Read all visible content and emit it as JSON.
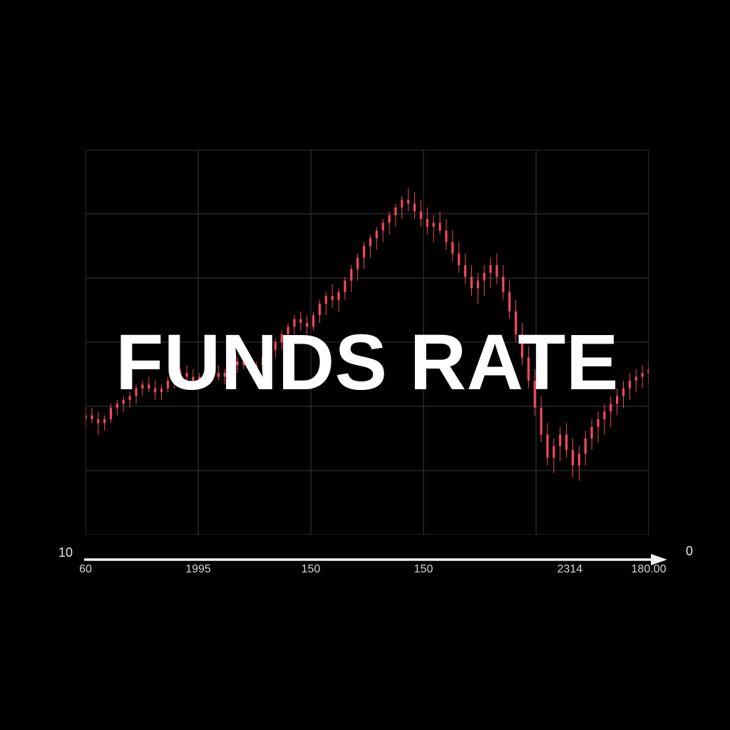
{
  "chart": {
    "type": "candlestick",
    "title": "FUNDS RATE",
    "title_color": "#ffffff",
    "title_fontsize": 110,
    "title_fontweight": 800,
    "background_color": "#000000",
    "grid_color": "#3a3a3a",
    "line_color": "#f24a5a",
    "axis_arrow_color": "#f2f2f2",
    "tick_text_color": "#d7d7d7",
    "edge_label_color": "#e7e7e7",
    "plot": {
      "xlim": [
        0,
        100
      ],
      "ylim": [
        0,
        100
      ],
      "x_gridlines_at": [
        0,
        20,
        40,
        60,
        80,
        100
      ],
      "y_gridlines_at": [
        0,
        16.67,
        33.33,
        50,
        66.67,
        83.33,
        100
      ]
    },
    "left_axis_label": "10",
    "right_axis_label": "0",
    "x_ticks": [
      {
        "pos": 0,
        "label": "60"
      },
      {
        "pos": 20,
        "label": "1995"
      },
      {
        "pos": 40,
        "label": "150"
      },
      {
        "pos": 60,
        "label": "150"
      },
      {
        "pos": 86,
        "label": "2314"
      },
      {
        "pos": 100,
        "label": "180.00"
      }
    ],
    "series": [
      {
        "x": 0,
        "o": 30,
        "h": 33,
        "l": 28,
        "c": 31
      },
      {
        "x": 1,
        "o": 31,
        "h": 33,
        "l": 29,
        "c": 30
      },
      {
        "x": 2,
        "o": 30,
        "h": 32,
        "l": 26,
        "c": 29
      },
      {
        "x": 3,
        "o": 29,
        "h": 31,
        "l": 27,
        "c": 30
      },
      {
        "x": 4,
        "o": 30,
        "h": 34,
        "l": 29,
        "c": 33
      },
      {
        "x": 5,
        "o": 33,
        "h": 35,
        "l": 31,
        "c": 34
      },
      {
        "x": 6,
        "o": 34,
        "h": 36,
        "l": 32,
        "c": 35
      },
      {
        "x": 7,
        "o": 35,
        "h": 37,
        "l": 33,
        "c": 36
      },
      {
        "x": 8,
        "o": 36,
        "h": 39,
        "l": 34,
        "c": 38
      },
      {
        "x": 9,
        "o": 38,
        "h": 40,
        "l": 36,
        "c": 39
      },
      {
        "x": 10,
        "o": 39,
        "h": 41,
        "l": 37,
        "c": 38
      },
      {
        "x": 11,
        "o": 38,
        "h": 40,
        "l": 35,
        "c": 37
      },
      {
        "x": 12,
        "o": 37,
        "h": 39,
        "l": 35,
        "c": 38
      },
      {
        "x": 13,
        "o": 38,
        "h": 41,
        "l": 37,
        "c": 40
      },
      {
        "x": 14,
        "o": 40,
        "h": 42,
        "l": 38,
        "c": 41
      },
      {
        "x": 15,
        "o": 41,
        "h": 43,
        "l": 39,
        "c": 42
      },
      {
        "x": 16,
        "o": 42,
        "h": 44,
        "l": 40,
        "c": 41
      },
      {
        "x": 17,
        "o": 41,
        "h": 43,
        "l": 39,
        "c": 40
      },
      {
        "x": 18,
        "o": 40,
        "h": 42,
        "l": 38,
        "c": 41
      },
      {
        "x": 19,
        "o": 41,
        "h": 44,
        "l": 40,
        "c": 43
      },
      {
        "x": 20,
        "o": 43,
        "h": 45,
        "l": 41,
        "c": 42
      },
      {
        "x": 21,
        "o": 42,
        "h": 44,
        "l": 40,
        "c": 41
      },
      {
        "x": 22,
        "o": 41,
        "h": 43,
        "l": 39,
        "c": 42
      },
      {
        "x": 23,
        "o": 42,
        "h": 45,
        "l": 41,
        "c": 44
      },
      {
        "x": 24,
        "o": 44,
        "h": 46,
        "l": 42,
        "c": 45
      },
      {
        "x": 25,
        "o": 45,
        "h": 47,
        "l": 43,
        "c": 44
      },
      {
        "x": 26,
        "o": 44,
        "h": 46,
        "l": 42,
        "c": 43
      },
      {
        "x": 27,
        "o": 43,
        "h": 45,
        "l": 41,
        "c": 44
      },
      {
        "x": 28,
        "o": 44,
        "h": 47,
        "l": 43,
        "c": 46
      },
      {
        "x": 29,
        "o": 46,
        "h": 49,
        "l": 45,
        "c": 48
      },
      {
        "x": 30,
        "o": 48,
        "h": 51,
        "l": 46,
        "c": 50
      },
      {
        "x": 31,
        "o": 50,
        "h": 53,
        "l": 48,
        "c": 52
      },
      {
        "x": 32,
        "o": 52,
        "h": 55,
        "l": 50,
        "c": 54
      },
      {
        "x": 33,
        "o": 54,
        "h": 57,
        "l": 52,
        "c": 56
      },
      {
        "x": 34,
        "o": 56,
        "h": 58,
        "l": 53,
        "c": 55
      },
      {
        "x": 35,
        "o": 55,
        "h": 57,
        "l": 52,
        "c": 54
      },
      {
        "x": 36,
        "o": 54,
        "h": 58,
        "l": 53,
        "c": 57
      },
      {
        "x": 37,
        "o": 57,
        "h": 61,
        "l": 55,
        "c": 60
      },
      {
        "x": 38,
        "o": 60,
        "h": 63,
        "l": 57,
        "c": 62
      },
      {
        "x": 39,
        "o": 62,
        "h": 65,
        "l": 59,
        "c": 61
      },
      {
        "x": 40,
        "o": 61,
        "h": 64,
        "l": 58,
        "c": 63
      },
      {
        "x": 41,
        "o": 63,
        "h": 67,
        "l": 61,
        "c": 66
      },
      {
        "x": 42,
        "o": 66,
        "h": 70,
        "l": 63,
        "c": 69
      },
      {
        "x": 43,
        "o": 69,
        "h": 73,
        "l": 66,
        "c": 72
      },
      {
        "x": 44,
        "o": 72,
        "h": 76,
        "l": 69,
        "c": 75
      },
      {
        "x": 45,
        "o": 75,
        "h": 78,
        "l": 72,
        "c": 77
      },
      {
        "x": 46,
        "o": 77,
        "h": 80,
        "l": 74,
        "c": 79
      },
      {
        "x": 47,
        "o": 79,
        "h": 82,
        "l": 76,
        "c": 81
      },
      {
        "x": 48,
        "o": 81,
        "h": 84,
        "l": 78,
        "c": 83
      },
      {
        "x": 49,
        "o": 83,
        "h": 86,
        "l": 80,
        "c": 85
      },
      {
        "x": 50,
        "o": 85,
        "h": 88,
        "l": 82,
        "c": 87
      },
      {
        "x": 51,
        "o": 87,
        "h": 90,
        "l": 84,
        "c": 86
      },
      {
        "x": 52,
        "o": 86,
        "h": 89,
        "l": 82,
        "c": 84
      },
      {
        "x": 53,
        "o": 84,
        "h": 87,
        "l": 80,
        "c": 82
      },
      {
        "x": 54,
        "o": 82,
        "h": 85,
        "l": 78,
        "c": 80
      },
      {
        "x": 55,
        "o": 80,
        "h": 83,
        "l": 76,
        "c": 81
      },
      {
        "x": 56,
        "o": 81,
        "h": 84,
        "l": 78,
        "c": 79
      },
      {
        "x": 57,
        "o": 79,
        "h": 82,
        "l": 74,
        "c": 76
      },
      {
        "x": 58,
        "o": 76,
        "h": 79,
        "l": 71,
        "c": 73
      },
      {
        "x": 59,
        "o": 73,
        "h": 76,
        "l": 68,
        "c": 70
      },
      {
        "x": 60,
        "o": 70,
        "h": 73,
        "l": 65,
        "c": 67
      },
      {
        "x": 61,
        "o": 67,
        "h": 70,
        "l": 62,
        "c": 64
      },
      {
        "x": 62,
        "o": 64,
        "h": 68,
        "l": 60,
        "c": 66
      },
      {
        "x": 63,
        "o": 66,
        "h": 70,
        "l": 62,
        "c": 68
      },
      {
        "x": 64,
        "o": 68,
        "h": 72,
        "l": 64,
        "c": 70
      },
      {
        "x": 65,
        "o": 70,
        "h": 73,
        "l": 65,
        "c": 67
      },
      {
        "x": 66,
        "o": 67,
        "h": 70,
        "l": 61,
        "c": 63
      },
      {
        "x": 67,
        "o": 63,
        "h": 66,
        "l": 56,
        "c": 58
      },
      {
        "x": 68,
        "o": 58,
        "h": 61,
        "l": 50,
        "c": 52
      },
      {
        "x": 69,
        "o": 52,
        "h": 55,
        "l": 44,
        "c": 46
      },
      {
        "x": 70,
        "o": 46,
        "h": 49,
        "l": 38,
        "c": 40
      },
      {
        "x": 71,
        "o": 40,
        "h": 43,
        "l": 31,
        "c": 33
      },
      {
        "x": 72,
        "o": 33,
        "h": 36,
        "l": 24,
        "c": 26
      },
      {
        "x": 73,
        "o": 26,
        "h": 29,
        "l": 18,
        "c": 20
      },
      {
        "x": 74,
        "o": 20,
        "h": 25,
        "l": 16,
        "c": 23
      },
      {
        "x": 75,
        "o": 23,
        "h": 28,
        "l": 19,
        "c": 26
      },
      {
        "x": 76,
        "o": 26,
        "h": 29,
        "l": 20,
        "c": 22
      },
      {
        "x": 77,
        "o": 22,
        "h": 25,
        "l": 15,
        "c": 18
      },
      {
        "x": 78,
        "o": 18,
        "h": 23,
        "l": 14,
        "c": 21
      },
      {
        "x": 79,
        "o": 21,
        "h": 27,
        "l": 18,
        "c": 25
      },
      {
        "x": 80,
        "o": 25,
        "h": 30,
        "l": 22,
        "c": 28
      },
      {
        "x": 81,
        "o": 28,
        "h": 32,
        "l": 24,
        "c": 30
      },
      {
        "x": 82,
        "o": 30,
        "h": 34,
        "l": 26,
        "c": 32
      },
      {
        "x": 83,
        "o": 32,
        "h": 36,
        "l": 28,
        "c": 34
      },
      {
        "x": 84,
        "o": 34,
        "h": 38,
        "l": 31,
        "c": 36
      },
      {
        "x": 85,
        "o": 36,
        "h": 40,
        "l": 33,
        "c": 38
      },
      {
        "x": 86,
        "o": 38,
        "h": 42,
        "l": 35,
        "c": 40
      },
      {
        "x": 87,
        "o": 40,
        "h": 43,
        "l": 37,
        "c": 41
      },
      {
        "x": 88,
        "o": 41,
        "h": 44,
        "l": 38,
        "c": 42
      },
      {
        "x": 89,
        "o": 42,
        "h": 45,
        "l": 39,
        "c": 43
      }
    ]
  }
}
